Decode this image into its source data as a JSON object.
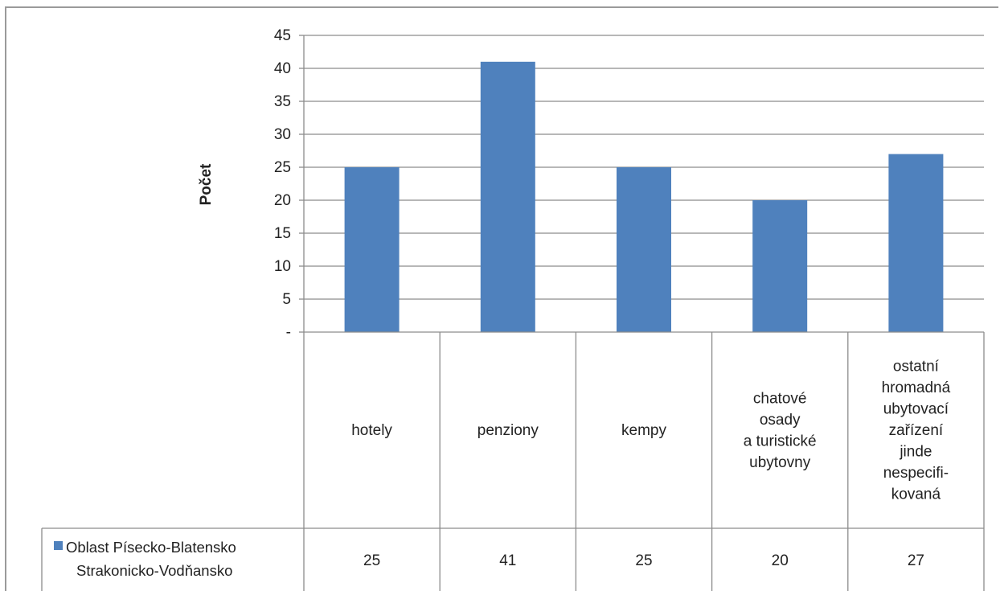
{
  "chart_data": {
    "type": "bar",
    "title": "",
    "ylabel": "Počet",
    "xlabel": "",
    "ylim": [
      0,
      45
    ],
    "yticks": [
      {
        "value": 0,
        "label": "-"
      },
      {
        "value": 5,
        "label": "5"
      },
      {
        "value": 10,
        "label": "10"
      },
      {
        "value": 15,
        "label": "15"
      },
      {
        "value": 20,
        "label": "20"
      },
      {
        "value": 25,
        "label": "25"
      },
      {
        "value": 30,
        "label": "30"
      },
      {
        "value": 35,
        "label": "35"
      },
      {
        "value": 40,
        "label": "40"
      },
      {
        "value": 45,
        "label": "45"
      }
    ],
    "categories": [
      [
        "hotely"
      ],
      [
        "penziony"
      ],
      [
        "kempy"
      ],
      [
        "chatové",
        "osady",
        "a turistické",
        "ubytovny"
      ],
      [
        "ostatní",
        "hromadná",
        "ubytovací",
        "zařízení",
        "jinde",
        "nespecifi-",
        "kovaná"
      ]
    ],
    "series": [
      {
        "name": [
          "Oblast Písecko-Blatensko",
          "Strakonicko-Vodňansko"
        ],
        "values": [
          25,
          41,
          25,
          20,
          27
        ],
        "value_labels": [
          "25",
          "41",
          "25",
          "20",
          "27"
        ],
        "color": "#4f81bd"
      }
    ],
    "grid": true,
    "legend_position": "data-table-left"
  }
}
